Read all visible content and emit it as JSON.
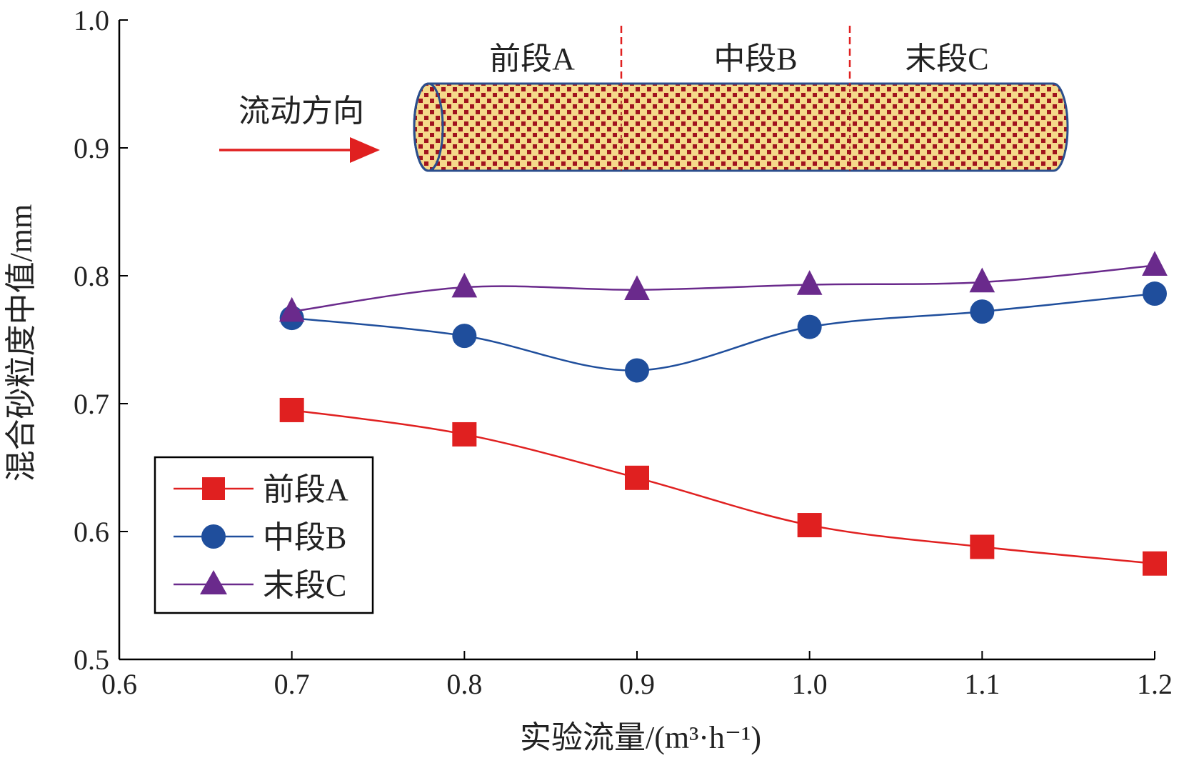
{
  "chart_data": {
    "type": "line",
    "xlabel": "实验流量/(m³·h⁻¹)",
    "ylabel": "混合砂粒度中值/mm",
    "xlim": [
      0.6,
      1.2
    ],
    "ylim": [
      0.5,
      1.0
    ],
    "xticks": [
      "0.6",
      "0.7",
      "0.8",
      "0.9",
      "1.0",
      "1.1",
      "1.2"
    ],
    "yticks": [
      "0.5",
      "0.6",
      "0.7",
      "0.8",
      "0.9",
      "1.0"
    ],
    "x": [
      0.7,
      0.8,
      0.9,
      1.0,
      1.1,
      1.2
    ],
    "grid": false,
    "legend_position": "bottom-left",
    "series": [
      {
        "name": "前段A",
        "values": [
          0.695,
          0.676,
          0.642,
          0.605,
          0.588,
          0.575
        ],
        "color": "#e02020",
        "marker": "square"
      },
      {
        "name": "中段B",
        "values": [
          0.767,
          0.753,
          0.726,
          0.76,
          0.772,
          0.786
        ],
        "color": "#1f4e9c",
        "marker": "circle"
      },
      {
        "name": "末段C",
        "values": [
          0.772,
          0.791,
          0.789,
          0.793,
          0.795,
          0.808
        ],
        "color": "#6a2a8c",
        "marker": "triangle"
      }
    ],
    "inset": {
      "segments": [
        "前段A",
        "中段B",
        "末段C"
      ],
      "flow_label": "流动方向",
      "pipe_fill": "#f5d98a",
      "grain_color": "#a0141e",
      "arrow_color": "#e02020"
    }
  }
}
